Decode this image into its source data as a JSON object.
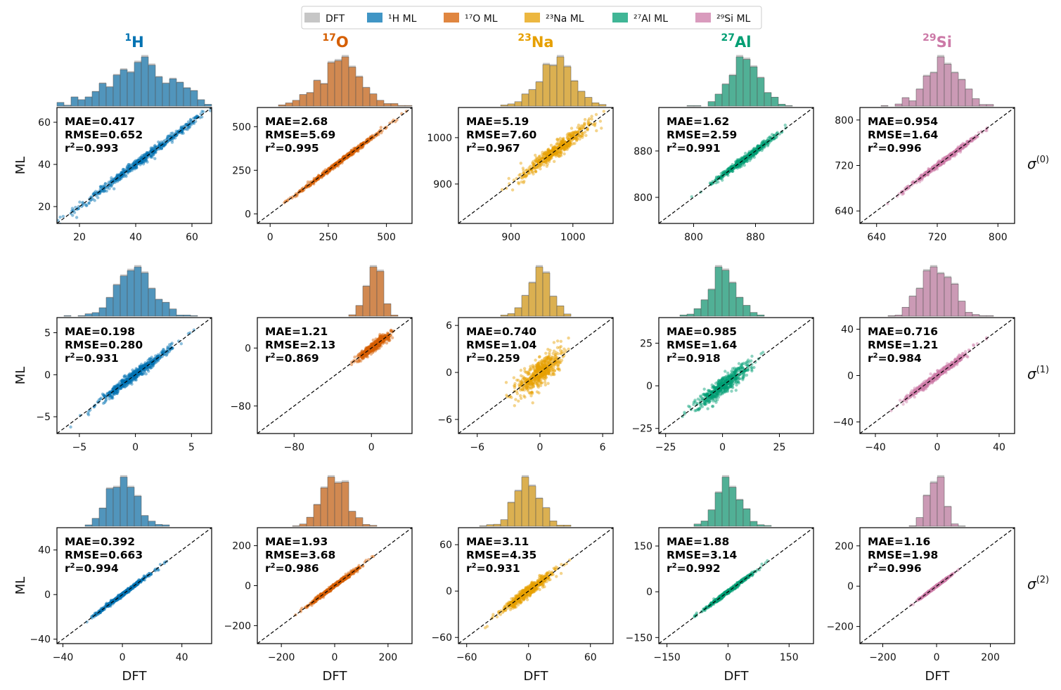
{
  "chart_data": {
    "type": "scatter",
    "description_grid": "3 rows (sigma orders) x 5 columns (nuclei); each panel is ML vs DFT parity scatter with marginal histogram",
    "legend": [
      {
        "label": "DFT",
        "color": "#b3b3b3"
      },
      {
        "label": "¹H ML",
        "color": "#0072b2"
      },
      {
        "label": "¹⁷O ML",
        "color": "#d55e00"
      },
      {
        "label": "²³Na ML",
        "color": "#e69f00"
      },
      {
        "label": "²⁷Al ML",
        "color": "#009e73"
      },
      {
        "label": "²⁹Si ML",
        "color": "#cc79a7"
      }
    ],
    "columns": [
      {
        "sup": "1",
        "name": "H",
        "color": "#0072b2"
      },
      {
        "sup": "17",
        "name": "O",
        "color": "#d55e00"
      },
      {
        "sup": "23",
        "name": "Na",
        "color": "#e69f00"
      },
      {
        "sup": "27",
        "name": "Al",
        "color": "#009e73"
      },
      {
        "sup": "29",
        "name": "Si",
        "color": "#cc79a7"
      }
    ],
    "rows": [
      {
        "label": "σ",
        "sup": "(0)"
      },
      {
        "label": "σ",
        "sup": "(1)"
      },
      {
        "label": "σ",
        "sup": "(2)"
      }
    ],
    "xlabel": "DFT",
    "ylabel": "ML",
    "panels": [
      {
        "row": 0,
        "col": 0,
        "mae": "0.417",
        "rmse": "0.652",
        "r2": "0.993",
        "lim": [
          12,
          67
        ],
        "xticks": [
          20,
          40,
          60
        ],
        "yticks": [
          20,
          40,
          60
        ],
        "center": 47,
        "spread": 11,
        "noise": 1.0,
        "skew": -0.6
      },
      {
        "row": 0,
        "col": 1,
        "mae": "2.68",
        "rmse": "5.69",
        "r2": "0.995",
        "lim": [
          -55,
          610
        ],
        "xticks": [
          0,
          250,
          500
        ],
        "yticks": [
          0,
          250,
          500
        ],
        "center": 330,
        "spread": 90,
        "noise": 6,
        "skew": -0.4
      },
      {
        "row": 0,
        "col": 2,
        "mae": "5.19",
        "rmse": "7.60",
        "r2": "0.967",
        "lim": [
          815,
          1065
        ],
        "xticks": [
          900,
          1000
        ],
        "yticks": [
          900,
          1000
        ],
        "center": 985,
        "spread": 28,
        "noise": 8,
        "skew": -0.5
      },
      {
        "row": 0,
        "col": 3,
        "mae": "1.62",
        "rmse": "2.59",
        "r2": "0.991",
        "lim": [
          755,
          955
        ],
        "xticks": [
          800,
          880
        ],
        "yticks": [
          800,
          880
        ],
        "center": 865,
        "spread": 20,
        "noise": 3,
        "skew": 0.1
      },
      {
        "row": 0,
        "col": 4,
        "mae": "0.954",
        "rmse": "1.64",
        "r2": "0.996",
        "lim": [
          618,
          822
        ],
        "xticks": [
          640,
          720,
          800
        ],
        "yticks": [
          640,
          720,
          800
        ],
        "center": 728,
        "spread": 22,
        "noise": 2,
        "skew": 0
      },
      {
        "row": 1,
        "col": 0,
        "mae": "0.198",
        "rmse": "0.280",
        "r2": "0.931",
        "lim": [
          -7,
          6.8
        ],
        "xticks": [
          -5,
          0,
          5
        ],
        "yticks": [
          -5,
          0,
          5
        ],
        "center": 0,
        "spread": 1.6,
        "noise": 0.3,
        "skew": 0
      },
      {
        "row": 1,
        "col": 1,
        "mae": "1.21",
        "rmse": "2.13",
        "r2": "0.869",
        "lim": [
          -118,
          42
        ],
        "xticks": [
          -80,
          0
        ],
        "yticks": [
          -80,
          0
        ],
        "center": 3,
        "spread": 8,
        "noise": 3,
        "skew": 0
      },
      {
        "row": 1,
        "col": 2,
        "mae": "0.740",
        "rmse": "1.04",
        "r2": "0.259",
        "lim": [
          -7.8,
          7
        ],
        "xticks": [
          -6,
          0,
          6
        ],
        "yticks": [
          -6,
          0,
          6
        ],
        "center": 0,
        "spread": 1.0,
        "noise": 0.9,
        "skew": 0
      },
      {
        "row": 1,
        "col": 3,
        "mae": "0.985",
        "rmse": "1.64",
        "r2": "0.918",
        "lim": [
          -28,
          40
        ],
        "xticks": [
          -25,
          0,
          25
        ],
        "yticks": [
          -25,
          0,
          25
        ],
        "center": 0,
        "spread": 6,
        "noise": 2.5,
        "skew": 0
      },
      {
        "row": 1,
        "col": 4,
        "mae": "0.716",
        "rmse": "1.21",
        "r2": "0.984",
        "lim": [
          -50,
          50
        ],
        "xticks": [
          -40,
          0,
          40
        ],
        "yticks": [
          -40,
          0,
          40
        ],
        "center": 0,
        "spread": 10,
        "noise": 1.5,
        "skew": 0
      },
      {
        "row": 2,
        "col": 0,
        "mae": "0.392",
        "rmse": "0.663",
        "r2": "0.994",
        "lim": [
          -44,
          60
        ],
        "xticks": [
          -40,
          0,
          40
        ],
        "yticks": [
          -40,
          0,
          40
        ],
        "center": 0,
        "spread": 9,
        "noise": 0.8,
        "skew": 0
      },
      {
        "row": 2,
        "col": 1,
        "mae": "1.93",
        "rmse": "3.68",
        "r2": "0.986",
        "lim": [
          -290,
          290
        ],
        "xticks": [
          -200,
          0,
          200
        ],
        "yticks": [
          -200,
          0,
          200
        ],
        "center": 0,
        "spread": 45,
        "noise": 5,
        "skew": 0
      },
      {
        "row": 2,
        "col": 2,
        "mae": "3.11",
        "rmse": "4.35",
        "r2": "0.931",
        "lim": [
          -68,
          82
        ],
        "xticks": [
          -60,
          0,
          60
        ],
        "yticks": [
          -60,
          0,
          60
        ],
        "center": 0,
        "spread": 13,
        "noise": 3.5,
        "skew": 0
      },
      {
        "row": 2,
        "col": 3,
        "mae": "1.88",
        "rmse": "3.14",
        "r2": "0.992",
        "lim": [
          -170,
          210
        ],
        "xticks": [
          -150,
          0,
          150
        ],
        "yticks": [
          -150,
          0,
          150
        ],
        "center": 0,
        "spread": 30,
        "noise": 3,
        "skew": 0
      },
      {
        "row": 2,
        "col": 4,
        "mae": "1.16",
        "rmse": "1.98",
        "r2": "0.996",
        "lim": [
          -285,
          290
        ],
        "xticks": [
          -200,
          0,
          200
        ],
        "yticks": [
          -200,
          0,
          200
        ],
        "center": 0,
        "spread": 30,
        "noise": 2,
        "skew": 0
      }
    ]
  }
}
